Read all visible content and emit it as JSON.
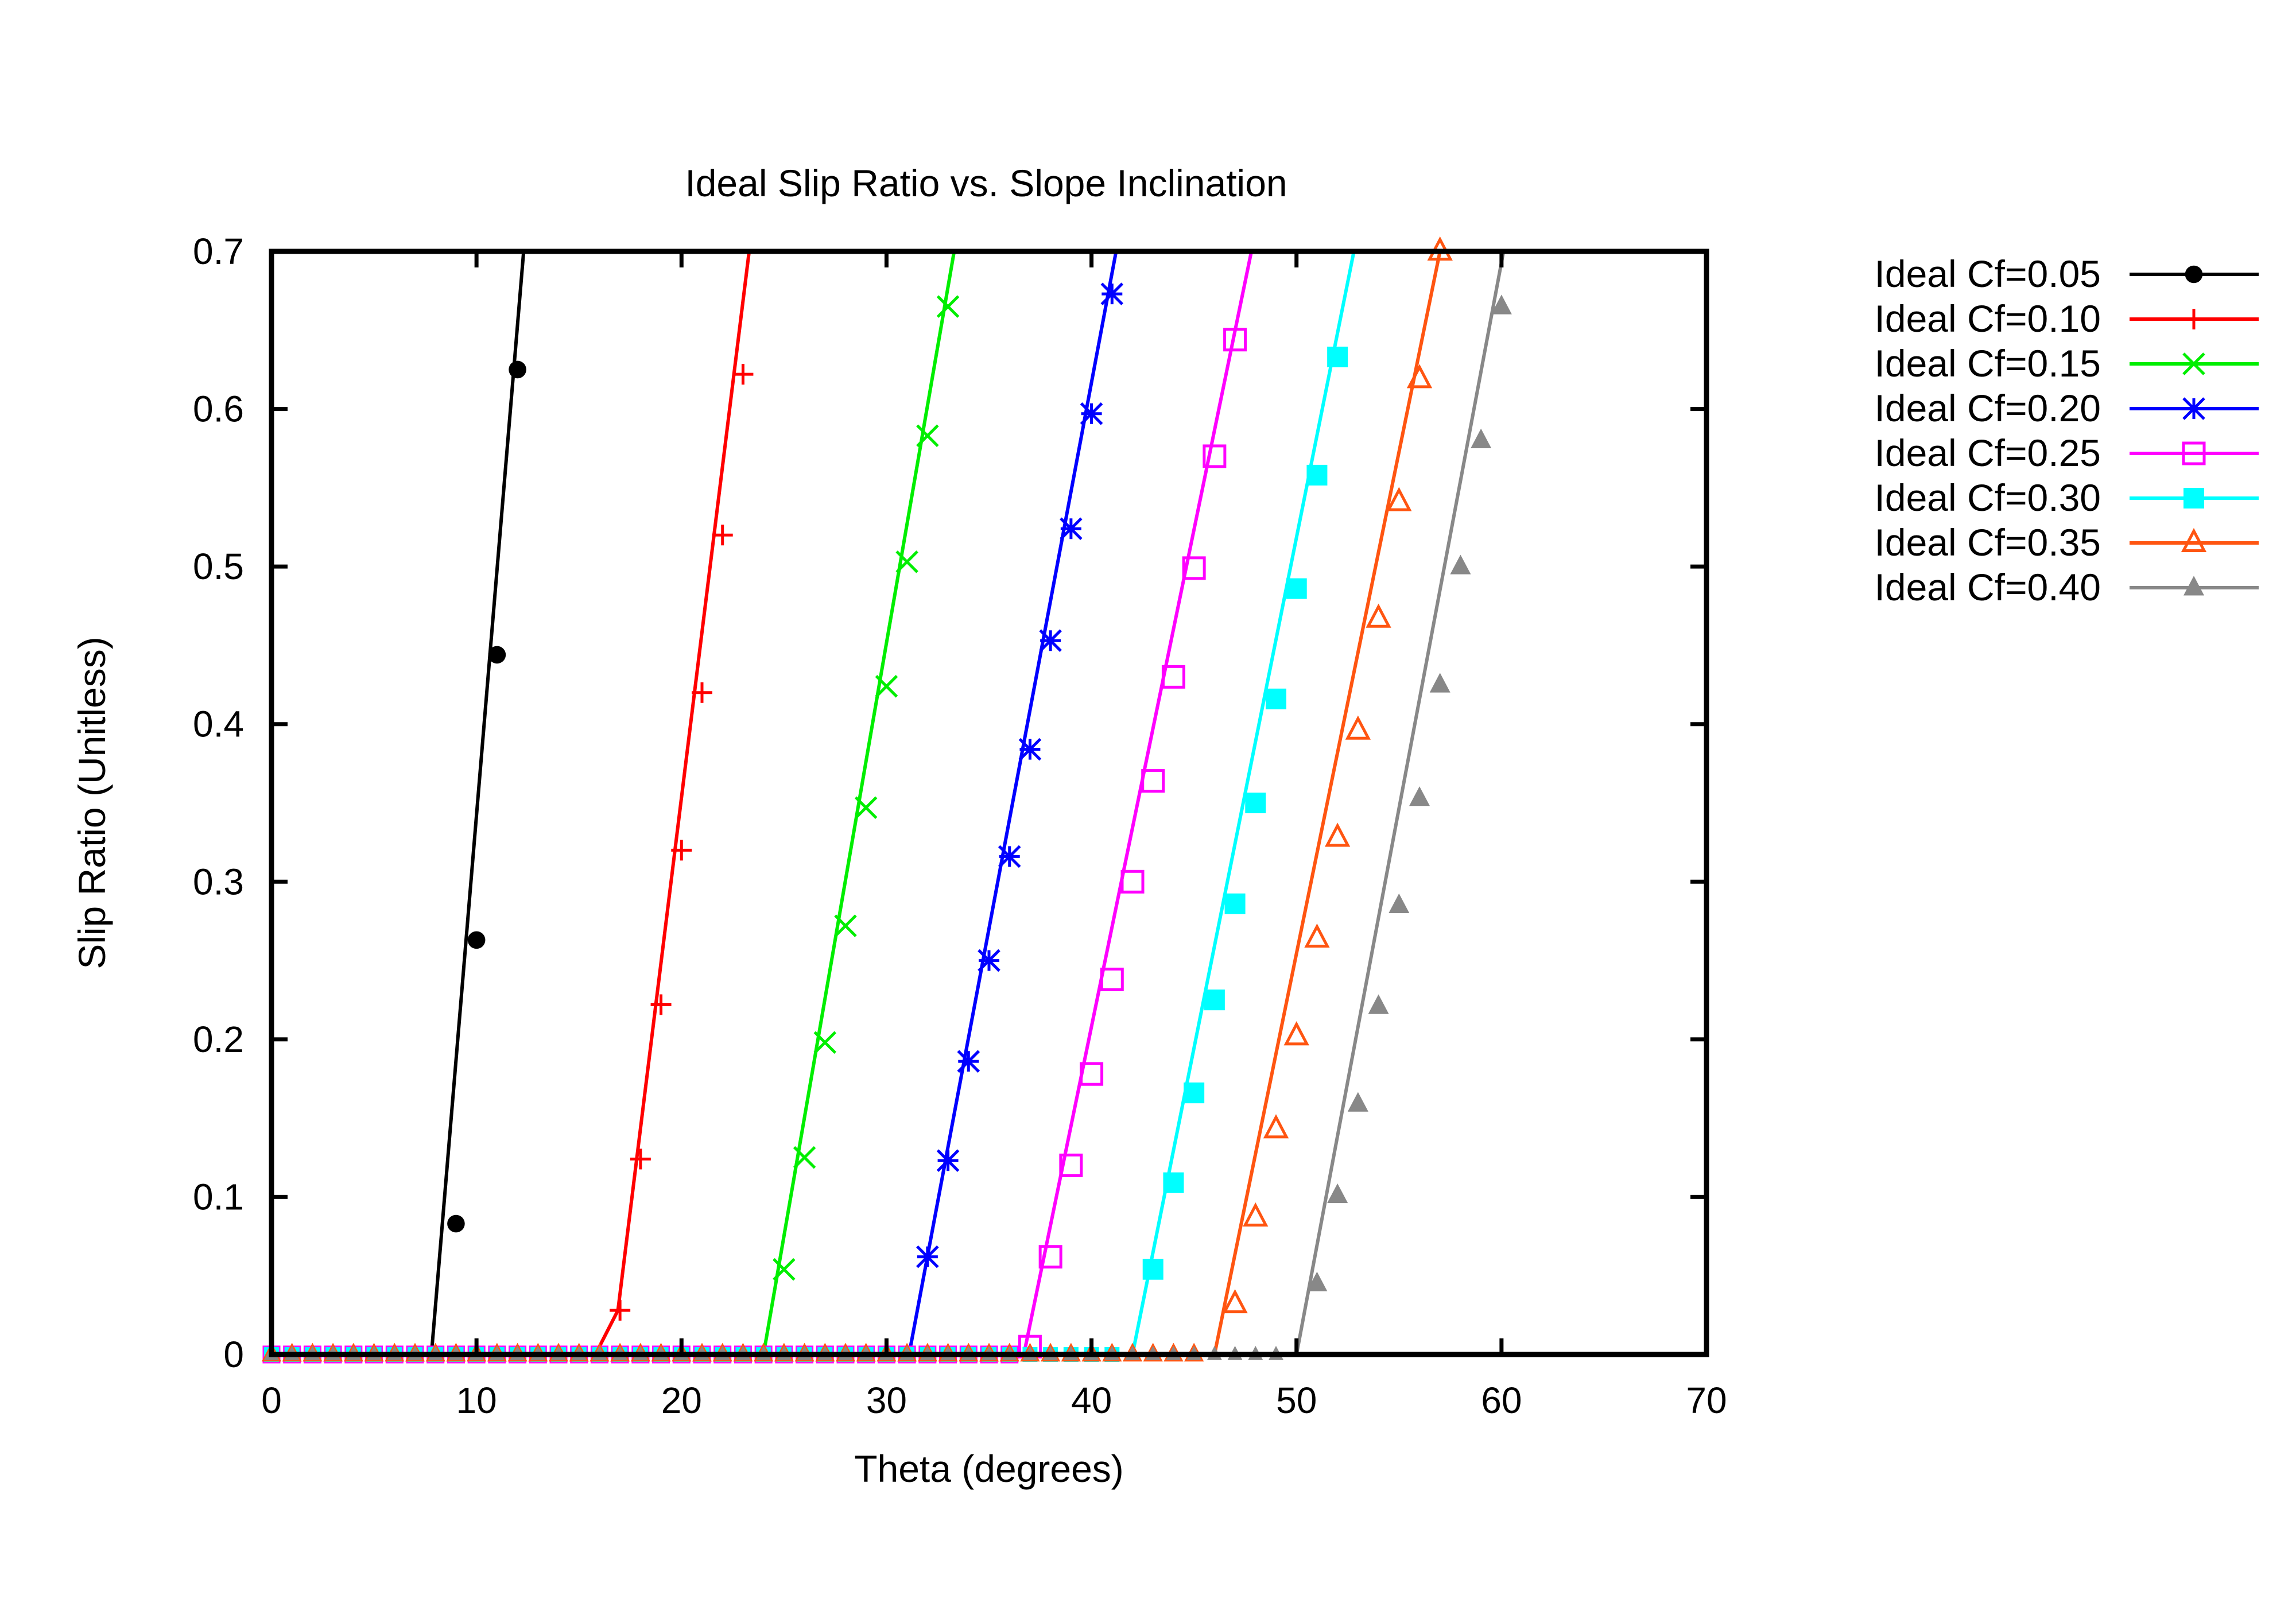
{
  "chart_data": {
    "type": "line",
    "title": "Ideal Slip Ratio vs. Slope Inclination",
    "xlabel": "Theta (degrees)",
    "ylabel": "Slip Ratio (Unitless)",
    "xlim": [
      0,
      70
    ],
    "ylim": [
      0,
      0.7
    ],
    "x_ticks": [
      0,
      10,
      20,
      30,
      40,
      50,
      60,
      70
    ],
    "x_tick_labels": [
      "0",
      "10",
      "20",
      "30",
      "40",
      "50",
      "60",
      "70"
    ],
    "y_ticks": [
      0,
      0.1,
      0.2,
      0.3,
      0.4,
      0.5,
      0.6,
      0.7
    ],
    "y_tick_labels": [
      "0",
      "0.1",
      "0.2",
      "0.3",
      "0.4",
      "0.5",
      "0.6",
      "0.7"
    ],
    "grid": false,
    "legend_position": "outside-right",
    "series": [
      {
        "name": "Ideal Cf=0.05",
        "color": "#000000",
        "marker": "filled-circle",
        "line_points": [
          [
            0,
            0
          ],
          [
            7.8,
            0
          ],
          [
            12.3,
            0.7
          ]
        ],
        "points": [
          [
            9,
            0.083
          ],
          [
            10,
            0.263
          ],
          [
            11,
            0.444
          ],
          [
            12,
            0.625
          ]
        ]
      },
      {
        "name": "Ideal Cf=0.10",
        "color": "#ff0000",
        "marker": "plus",
        "line_points": [
          [
            0,
            0
          ],
          [
            15.8,
            0
          ],
          [
            16.9,
            0.028
          ],
          [
            23.3,
            0.7
          ]
        ],
        "points": [
          [
            17,
            0.028
          ],
          [
            18,
            0.124
          ],
          [
            19,
            0.222
          ],
          [
            20,
            0.32
          ],
          [
            21,
            0.42
          ],
          [
            22,
            0.52
          ],
          [
            23,
            0.622
          ]
        ]
      },
      {
        "name": "Ideal Cf=0.15",
        "color": "#00ee00",
        "marker": "x",
        "line_points": [
          [
            0,
            0
          ],
          [
            24,
            0
          ],
          [
            33.3,
            0.7
          ]
        ],
        "points": [
          [
            25,
            0.054
          ],
          [
            26,
            0.125
          ],
          [
            27,
            0.198
          ],
          [
            28,
            0.272
          ],
          [
            29,
            0.347
          ],
          [
            30,
            0.424
          ],
          [
            31,
            0.503
          ],
          [
            32,
            0.583
          ],
          [
            33,
            0.665
          ]
        ]
      },
      {
        "name": "Ideal Cf=0.20",
        "color": "#0000ff",
        "marker": "asterisk",
        "line_points": [
          [
            0,
            0
          ],
          [
            31.1,
            0
          ],
          [
            41.2,
            0.7
          ]
        ],
        "points": [
          [
            32,
            0.062
          ],
          [
            33,
            0.123
          ],
          [
            34,
            0.186
          ],
          [
            35,
            0.25
          ],
          [
            36,
            0.316
          ],
          [
            37,
            0.384
          ],
          [
            38,
            0.453
          ],
          [
            39,
            0.524
          ],
          [
            40,
            0.597
          ],
          [
            41,
            0.673
          ]
        ]
      },
      {
        "name": "Ideal Cf=0.25",
        "color": "#ff00ff",
        "marker": "open-square",
        "line_points": [
          [
            0,
            0
          ],
          [
            36.7,
            0
          ],
          [
            47.8,
            0.7
          ]
        ],
        "points": [
          [
            37,
            0.005
          ],
          [
            38,
            0.062
          ],
          [
            39,
            0.12
          ],
          [
            40,
            0.178
          ],
          [
            41,
            0.238
          ],
          [
            42,
            0.3
          ],
          [
            43,
            0.364
          ],
          [
            44,
            0.43
          ],
          [
            45,
            0.499
          ],
          [
            46,
            0.57
          ],
          [
            47,
            0.644
          ]
        ]
      },
      {
        "name": "Ideal Cf=0.30",
        "color": "#00ffff",
        "marker": "filled-square",
        "line_points": [
          [
            0,
            0
          ],
          [
            42,
            0
          ],
          [
            52.8,
            0.7
          ]
        ],
        "points": [
          [
            43,
            0.054
          ],
          [
            44,
            0.109
          ],
          [
            45,
            0.166
          ],
          [
            46,
            0.225
          ],
          [
            47,
            0.286
          ],
          [
            48,
            0.35
          ],
          [
            49,
            0.416
          ],
          [
            50,
            0.486
          ],
          [
            51,
            0.558
          ],
          [
            52,
            0.633
          ]
        ]
      },
      {
        "name": "Ideal Cf=0.35",
        "color": "#ff5511",
        "marker": "open-triangle",
        "line_points": [
          [
            0,
            0
          ],
          [
            46,
            0
          ],
          [
            57,
            0.7
          ]
        ],
        "points": [
          [
            47,
            0.032
          ],
          [
            48,
            0.087
          ],
          [
            49,
            0.143
          ],
          [
            50,
            0.202
          ],
          [
            51,
            0.264
          ],
          [
            52,
            0.328
          ],
          [
            53,
            0.396
          ],
          [
            54,
            0.467
          ],
          [
            55,
            0.541
          ],
          [
            56,
            0.619
          ],
          [
            57,
            0.7
          ]
        ]
      },
      {
        "name": "Ideal Cf=0.40",
        "color": "#888888",
        "marker": "filled-triangle",
        "line_points": [
          [
            0,
            0
          ],
          [
            50,
            0
          ],
          [
            60.1,
            0.7
          ]
        ],
        "points": [
          [
            51,
            0.045
          ],
          [
            52,
            0.101
          ],
          [
            53,
            0.159
          ],
          [
            54,
            0.221
          ],
          [
            55,
            0.285
          ],
          [
            56,
            0.353
          ],
          [
            57,
            0.425
          ],
          [
            58,
            0.5
          ],
          [
            59,
            0.58
          ],
          [
            60,
            0.665
          ]
        ]
      }
    ]
  }
}
